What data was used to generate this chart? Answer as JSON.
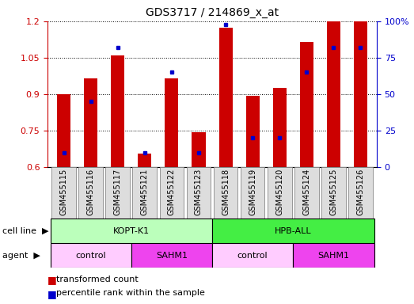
{
  "title": "GDS3717 / 214869_x_at",
  "samples": [
    "GSM455115",
    "GSM455116",
    "GSM455117",
    "GSM455121",
    "GSM455122",
    "GSM455123",
    "GSM455118",
    "GSM455119",
    "GSM455120",
    "GSM455124",
    "GSM455125",
    "GSM455126"
  ],
  "red_values": [
    0.9,
    0.965,
    1.06,
    0.655,
    0.965,
    0.745,
    1.175,
    0.895,
    0.925,
    1.115,
    1.2,
    1.2
  ],
  "blue_values_pct": [
    10,
    45,
    82,
    10,
    65,
    10,
    98,
    20,
    20,
    65,
    82,
    82
  ],
  "ylim_left": [
    0.6,
    1.2
  ],
  "ylim_right": [
    0,
    100
  ],
  "yticks_left": [
    0.6,
    0.75,
    0.9,
    1.05,
    1.2
  ],
  "yticks_right": [
    0,
    25,
    50,
    75,
    100
  ],
  "ylabel_left_color": "#cc0000",
  "ylabel_right_color": "#0000cc",
  "bar_color": "#cc0000",
  "dot_color": "#0000cc",
  "bar_width": 0.5,
  "cell_line_groups": [
    {
      "label": "KOPT-K1",
      "start": 0,
      "end": 6,
      "color": "#bbffbb"
    },
    {
      "label": "HPB-ALL",
      "start": 6,
      "end": 12,
      "color": "#44ee44"
    }
  ],
  "agent_groups": [
    {
      "label": "control",
      "start": 0,
      "end": 3,
      "color": "#ffccff"
    },
    {
      "label": "SAHM1",
      "start": 3,
      "end": 6,
      "color": "#ee44ee"
    },
    {
      "label": "control",
      "start": 6,
      "end": 9,
      "color": "#ffccff"
    },
    {
      "label": "SAHM1",
      "start": 9,
      "end": 12,
      "color": "#ee44ee"
    }
  ],
  "cell_line_label": "cell line",
  "agent_label": "agent",
  "legend_red_label": "transformed count",
  "legend_blue_label": "percentile rank within the sample"
}
